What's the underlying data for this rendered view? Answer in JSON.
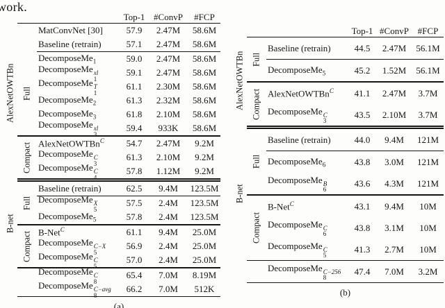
{
  "page": {
    "top_text": "work."
  },
  "panels": [
    {
      "caption": "(a)",
      "columns": [
        "Top-1",
        "#ConvP",
        "#FCP"
      ],
      "outer_labels": [
        {
          "text": "AlexNetOWTBn"
        },
        {
          "text": "B-net"
        }
      ],
      "sections": [
        {
          "inner": "",
          "rule_above": "thin",
          "rows": [
            {
              "label": "MatConvNet [30]",
              "values": [
                "57.9",
                "2.47M",
                "58.6M"
              ]
            },
            {
              "label": "Baseline (retrain)",
              "values": [
                "57.1",
                "2.47M",
                "58.6M"
              ],
              "partial_rule_below": true
            }
          ]
        },
        {
          "inner": "Full",
          "rule_above": "none",
          "rows": [
            {
              "label": "DecomposeMe",
              "sub": "1",
              "values": [
                "59.0",
                "2.47M",
                "58.6M"
              ]
            },
            {
              "label": "DecomposeMe",
              "sub": "1",
              "sup": "xl",
              "values": [
                "59.1",
                "2.47M",
                "58.6M"
              ]
            },
            {
              "label": "DecomposeMe",
              "sub": "1",
              "sup": "T",
              "values": [
                "61.1",
                "2.30M",
                "58.6M"
              ]
            },
            {
              "label": "DecomposeMe",
              "sub": "2",
              "values": [
                "61.3",
                "2.32M",
                "58.6M"
              ]
            },
            {
              "label": "DecomposeMe",
              "sub": "3",
              "values": [
                "61.8",
                "2.10M",
                "58.6M"
              ]
            },
            {
              "label": "DecomposeMe",
              "sub": "3",
              "sup": "xl",
              "values": [
                "59.4",
                "933K",
                "58.6M"
              ]
            }
          ]
        },
        {
          "inner": "Compact",
          "rule_above": "thick",
          "rows": [
            {
              "label": "AlexNetOWTBn",
              "sup": "C",
              "values": [
                "54.7",
                "2.47M",
                "9.2M"
              ]
            },
            {
              "label": "DecomposeMe",
              "sub": "3",
              "sup": "C",
              "values": [
                "61.3",
                "2.10M",
                "9.2M"
              ]
            },
            {
              "label": "DecomposeMe",
              "sub": "4",
              "sup": "C",
              "values": [
                "57.8",
                "1.12M",
                "9.2M"
              ]
            }
          ]
        },
        {
          "inner": "Full",
          "rule_above": "double",
          "rows": [
            {
              "label": "Baseline (retrain)",
              "values": [
                "62.5",
                "9.4M",
                "123.5M"
              ],
              "partial_rule_below": true
            },
            {
              "label": "DecomposeMe",
              "sub": "5",
              "sup": "X",
              "values": [
                "57.5",
                "2.4M",
                "123.5M"
              ]
            },
            {
              "label": "DecomposeMe",
              "sub": "5",
              "values": [
                "57.8",
                "2.4M",
                "123.5M"
              ]
            }
          ]
        },
        {
          "inner": "Compact",
          "rule_above": "thick",
          "rows": [
            {
              "label": "B-Net",
              "sup": "C",
              "values": [
                "61.1",
                "9.4M",
                "25.0M"
              ]
            },
            {
              "label": "DecomposeMe",
              "sub": "5",
              "sup": "C−X",
              "values": [
                "56.9",
                "2.4M",
                "25.0M"
              ]
            },
            {
              "label": "DecomposeMe",
              "sub": "5",
              "sup": "C",
              "values": [
                "57.0",
                "2.4M",
                "25.0M"
              ]
            }
          ]
        },
        {
          "inner": "",
          "rule_above": "thick",
          "rule_below": "bottom",
          "rows": [
            {
              "label": "DecomposeMe",
              "sub": "8",
              "sup": "C",
              "values": [
                "65.4",
                "7.0M",
                "8.19M"
              ]
            },
            {
              "label": "DecomposeMe",
              "sub": "8",
              "sup": "C−avg",
              "values": [
                "66.2",
                "7.0M",
                "512K"
              ]
            }
          ]
        }
      ]
    },
    {
      "caption": "(b)",
      "columns": [
        "Top-1",
        "#ConvP",
        "#FCP"
      ],
      "outer_labels": [
        {
          "text": "AlexNetOWTBn"
        },
        {
          "text": "B-net"
        }
      ],
      "sections": [
        {
          "inner": "Full",
          "rule_above": "thin",
          "rows": [
            {
              "label": "Baseline (retrain)",
              "values": [
                "44.5",
                "2.47M",
                "56.1M"
              ],
              "partial_rule_below": true
            },
            {
              "label": "DecomposeMe",
              "sub": "5",
              "values": [
                "45.2",
                "1.52M",
                "56.1M"
              ]
            }
          ]
        },
        {
          "inner": "Compact",
          "rule_above": "thick",
          "rows": [
            {
              "label": "AlexNetOWTBn",
              "sup": "C",
              "values": [
                "41.1",
                "2.47M",
                "3.7M"
              ]
            },
            {
              "label": "DecomposeMe",
              "sub": "3",
              "sup": "C",
              "values": [
                "43.5",
                "2.10M",
                "3.7M"
              ]
            }
          ]
        },
        {
          "inner": "Full",
          "rule_above": "double",
          "rows": [
            {
              "label": "Baseline (retrain)",
              "values": [
                "44.0",
                "9.4M",
                "121M"
              ],
              "partial_rule_below": true
            },
            {
              "label": "DecomposeMe",
              "sub": "6",
              "values": [
                "43.8",
                "3.0M",
                "121M"
              ]
            },
            {
              "label": "DecomposeMe",
              "sub": "6",
              "sup": "B",
              "values": [
                "43.6",
                "4.3M",
                "121M"
              ]
            }
          ]
        },
        {
          "inner": "Compact",
          "rule_above": "thick",
          "rows": [
            {
              "label": "B-Net",
              "sup": "C",
              "values": [
                "43.1",
                "9.4M",
                "10M"
              ]
            },
            {
              "label": "DecomposeMe",
              "sub": "6",
              "sup": "C",
              "values": [
                "43.8",
                "3.1M",
                "10M"
              ]
            },
            {
              "label": "DecomposeMe",
              "sub": "5",
              "sup": "C",
              "values": [
                "41.3",
                "2.7M",
                "10M"
              ]
            }
          ]
        },
        {
          "inner": "",
          "rule_above": "thin",
          "rule_below": "bottom",
          "rows": [
            {
              "label": "DecomposeMe",
              "sub": "8",
              "sup": "C−256",
              "values": [
                "47.4",
                "7.0M",
                "3.2M"
              ]
            }
          ]
        }
      ]
    }
  ]
}
